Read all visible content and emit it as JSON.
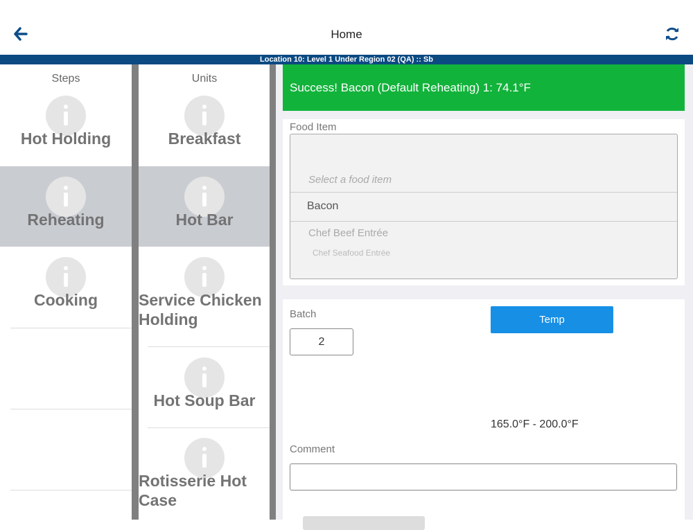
{
  "header": {
    "title": "Home",
    "location": "Location 10: Level 1 Under Region 02 (QA) :: Sb"
  },
  "steps": {
    "title": "Steps",
    "items": [
      "Hot Holding",
      "Reheating",
      "Cooking"
    ]
  },
  "units": {
    "title": "Units",
    "items": [
      "Breakfast",
      "Hot Bar",
      "Service Chicken Holding",
      "Hot Soup Bar",
      "Rotisserie Hot Case"
    ]
  },
  "alert": "Success! Bacon (Default Reheating) 1: 74.1°F",
  "food_item": {
    "label": "Food Item",
    "placeholder": "Select a food item",
    "options": [
      "Bacon",
      "Chef Beef Entrée",
      "Chef Seafood Entrée"
    ]
  },
  "batch": {
    "label": "Batch",
    "value": "2"
  },
  "temp_button": "Temp",
  "range": "165.0°F - 200.0°F",
  "comment": {
    "label": "Comment"
  }
}
